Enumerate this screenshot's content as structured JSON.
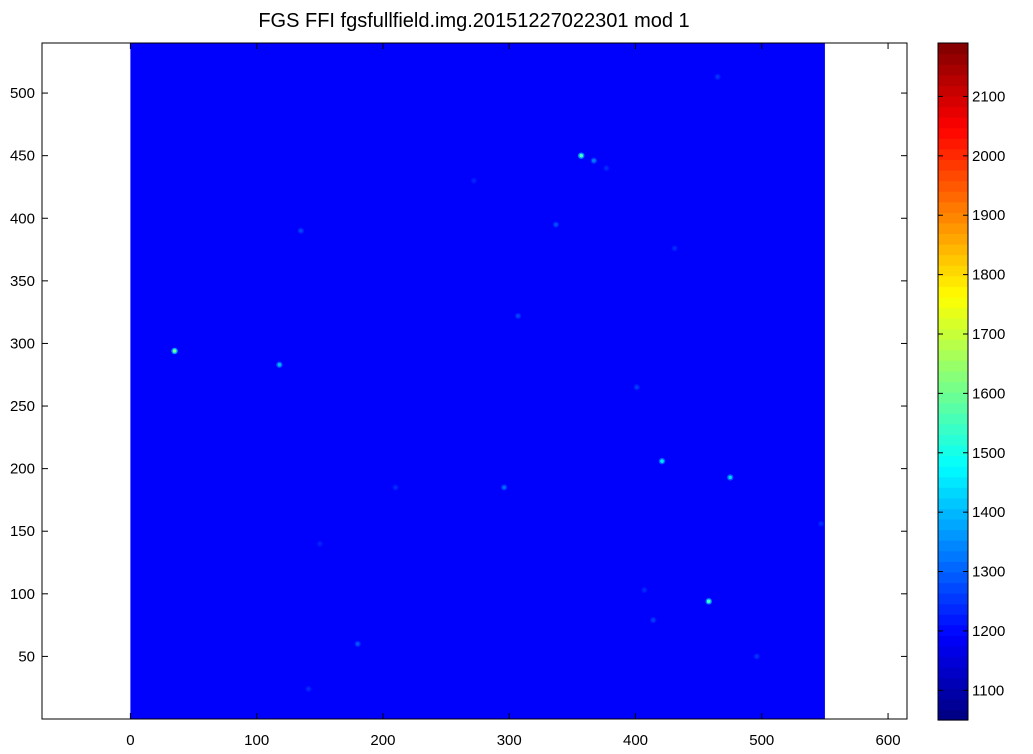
{
  "chart_data": {
    "type": "heatmap",
    "title": "FGS FFI fgsfullfield.img.20151227022301 mod 1",
    "xlabel": "",
    "ylabel": "",
    "xlim": [
      -70,
      615
    ],
    "ylim": [
      0,
      540
    ],
    "xticks": [
      0,
      100,
      200,
      300,
      400,
      500,
      600
    ],
    "yticks": [
      50,
      100,
      150,
      200,
      250,
      300,
      350,
      400,
      450,
      500
    ],
    "image_extent": {
      "x": [
        0,
        550
      ],
      "y": [
        0,
        540
      ]
    },
    "background_level": 1190,
    "colorbar": {
      "colormap": "jet",
      "clim": [
        1050,
        2190
      ],
      "ticks": [
        1100,
        1200,
        1300,
        1400,
        1500,
        1600,
        1700,
        1800,
        1900,
        2000,
        2100
      ]
    },
    "grid": false,
    "stars": [
      {
        "x": 357,
        "y": 450,
        "level": 1560
      },
      {
        "x": 367,
        "y": 446,
        "level": 1330
      },
      {
        "x": 35,
        "y": 294,
        "level": 1600
      },
      {
        "x": 118,
        "y": 283,
        "level": 1400
      },
      {
        "x": 421,
        "y": 206,
        "level": 1450
      },
      {
        "x": 475,
        "y": 193,
        "level": 1430
      },
      {
        "x": 296,
        "y": 185,
        "level": 1310
      },
      {
        "x": 458,
        "y": 94,
        "level": 1550
      },
      {
        "x": 337,
        "y": 395,
        "level": 1280
      },
      {
        "x": 135,
        "y": 390,
        "level": 1270
      },
      {
        "x": 307,
        "y": 322,
        "level": 1270
      },
      {
        "x": 401,
        "y": 265,
        "level": 1260
      },
      {
        "x": 180,
        "y": 60,
        "level": 1290
      },
      {
        "x": 414,
        "y": 79,
        "level": 1260
      },
      {
        "x": 465,
        "y": 513,
        "level": 1250
      },
      {
        "x": 431,
        "y": 376,
        "level": 1240
      },
      {
        "x": 496,
        "y": 50,
        "level": 1250
      },
      {
        "x": 547,
        "y": 156,
        "level": 1240
      },
      {
        "x": 141,
        "y": 24,
        "level": 1240
      },
      {
        "x": 210,
        "y": 185,
        "level": 1240
      },
      {
        "x": 407,
        "y": 103,
        "level": 1240
      },
      {
        "x": 377,
        "y": 440,
        "level": 1240
      },
      {
        "x": 150,
        "y": 140,
        "level": 1230
      },
      {
        "x": 272,
        "y": 430,
        "level": 1230
      }
    ]
  }
}
